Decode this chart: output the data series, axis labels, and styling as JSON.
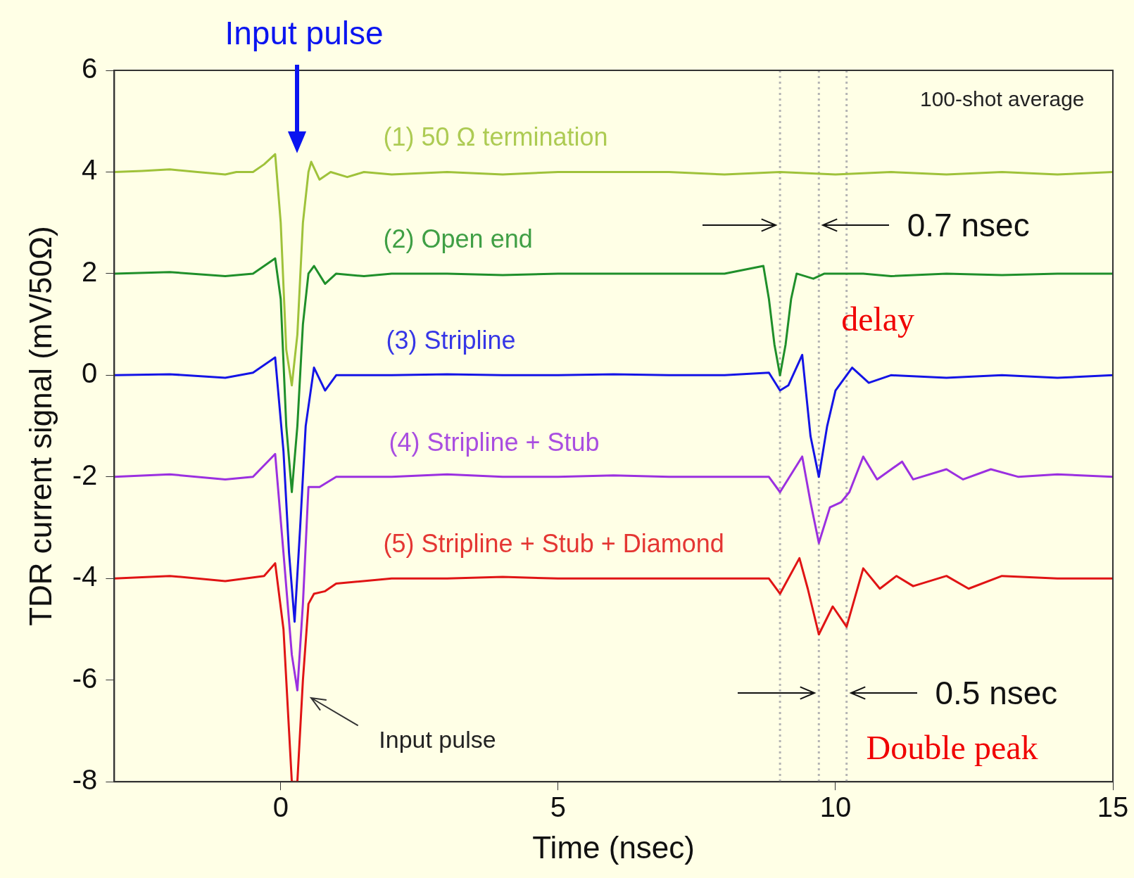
{
  "chart_data": {
    "type": "line",
    "xlabel": "Time (nsec)",
    "ylabel": "TDR current signal (mV/50Ω)",
    "xlim": [
      -3,
      15
    ],
    "xticks": [
      0,
      5,
      10,
      15
    ],
    "ylim": [
      -8,
      6
    ],
    "yticks": [
      -8,
      -6,
      -4,
      -2,
      0,
      2,
      4,
      6
    ],
    "grid": false,
    "legend": false,
    "marker": "none",
    "line_style": "solid",
    "series": [
      {
        "name": "(1) 50 Ω termination",
        "color": "#9fc23a",
        "x": [
          -3,
          -2.5,
          -2,
          -1.5,
          -1,
          -0.8,
          -0.5,
          -0.3,
          -0.1,
          0,
          0.1,
          0.2,
          0.3,
          0.4,
          0.5,
          0.55,
          0.7,
          0.9,
          1.2,
          1.5,
          2,
          3,
          4,
          5,
          6,
          7,
          8,
          9,
          10,
          11,
          12,
          13,
          14,
          15
        ],
        "values": [
          4,
          4.02,
          4.05,
          4,
          3.95,
          4,
          4,
          4.15,
          4.35,
          3,
          0.5,
          -0.2,
          0.8,
          3,
          4,
          4.2,
          3.85,
          4,
          3.9,
          4,
          3.95,
          4,
          3.95,
          4,
          4,
          4,
          3.95,
          4,
          3.95,
          4,
          3.95,
          4,
          3.95,
          4
        ]
      },
      {
        "name": "(2) Open end",
        "color": "#1f8f2a",
        "x": [
          -3,
          -2,
          -1,
          -0.5,
          -0.1,
          0,
          0.1,
          0.2,
          0.3,
          0.4,
          0.5,
          0.6,
          0.8,
          1,
          1.5,
          2,
          3,
          4,
          5,
          6,
          7,
          8,
          8.7,
          8.8,
          8.9,
          9,
          9.1,
          9.2,
          9.3,
          9.6,
          9.8,
          10.5,
          11,
          12,
          13,
          14,
          15
        ],
        "values": [
          2,
          2.03,
          1.95,
          2,
          2.3,
          1.5,
          -1,
          -2.3,
          -1,
          1,
          2,
          2.15,
          1.8,
          2,
          1.95,
          2,
          2,
          1.97,
          2,
          2,
          2,
          2,
          2.15,
          1.5,
          0.6,
          0,
          0.6,
          1.5,
          2,
          1.9,
          2,
          2,
          1.95,
          2,
          1.97,
          2,
          2
        ]
      },
      {
        "name": "(3) Stripline",
        "color": "#1414e6",
        "x": [
          -3,
          -2,
          -1,
          -0.5,
          -0.1,
          0.05,
          0.15,
          0.25,
          0.35,
          0.45,
          0.6,
          0.8,
          1,
          2,
          3,
          4,
          5,
          6,
          7,
          8,
          8.8,
          9,
          9.15,
          9.4,
          9.55,
          9.7,
          9.85,
          10,
          10.3,
          10.6,
          11,
          12,
          13,
          14,
          15
        ],
        "values": [
          0,
          0.02,
          -0.05,
          0.05,
          0.35,
          -1.5,
          -3.5,
          -4.85,
          -3,
          -1,
          0.15,
          -0.3,
          0,
          0,
          0.02,
          0,
          0,
          0.02,
          0,
          0,
          0.05,
          -0.3,
          -0.2,
          0.4,
          -1.2,
          -2,
          -1,
          -0.3,
          0.15,
          -0.15,
          0,
          -0.05,
          0,
          -0.05,
          0
        ]
      },
      {
        "name": "(4) Stripline + Stub",
        "color": "#9b30e0",
        "x": [
          -3,
          -2,
          -1,
          -0.5,
          -0.1,
          0.05,
          0.2,
          0.3,
          0.4,
          0.5,
          0.7,
          1,
          2,
          3,
          4,
          5,
          6,
          7,
          8,
          8.8,
          9,
          9.4,
          9.55,
          9.7,
          9.9,
          10.1,
          10.25,
          10.5,
          10.75,
          11.2,
          11.4,
          12,
          12.3,
          12.8,
          13.3,
          14,
          15
        ],
        "values": [
          -2,
          -1.95,
          -2.05,
          -2,
          -1.55,
          -3.5,
          -5.5,
          -6.2,
          -4.5,
          -2.2,
          -2.2,
          -2,
          -2,
          -1.95,
          -2,
          -2,
          -1.97,
          -2,
          -2,
          -2,
          -2.3,
          -1.6,
          -2.5,
          -3.3,
          -2.6,
          -2.5,
          -2.3,
          -1.6,
          -2.05,
          -1.7,
          -2.05,
          -1.85,
          -2.05,
          -1.85,
          -2,
          -1.95,
          -2
        ]
      },
      {
        "name": "(5) Stripline + Stub + Diamond",
        "color": "#e01414",
        "x": [
          -3,
          -2,
          -1,
          -0.3,
          -0.1,
          0.05,
          0.15,
          0.2,
          0.3,
          0.4,
          0.5,
          0.6,
          0.8,
          1,
          2,
          3,
          4,
          5,
          6,
          7,
          8,
          8.8,
          9,
          9.35,
          9.5,
          9.7,
          9.95,
          10.2,
          10.5,
          10.8,
          11.1,
          11.4,
          12,
          12.4,
          13,
          14,
          15
        ],
        "values": [
          -4,
          -3.95,
          -4.05,
          -3.95,
          -3.7,
          -5,
          -7,
          -8,
          -8,
          -6,
          -4.5,
          -4.3,
          -4.25,
          -4.1,
          -4,
          -4,
          -3.97,
          -4,
          -4,
          -4,
          -4,
          -4,
          -4.3,
          -3.6,
          -4.2,
          -5.1,
          -4.55,
          -4.95,
          -3.8,
          -4.2,
          -3.95,
          -4.15,
          -3.95,
          -4.2,
          -3.95,
          -4,
          -4
        ]
      }
    ],
    "ref_lines": [
      {
        "axis": "x",
        "value": 9,
        "color": "#b4b4b4",
        "line_style": "dotted"
      },
      {
        "axis": "x",
        "value": 9.7,
        "color": "#b4b4b4",
        "line_style": "dotted"
      },
      {
        "axis": "x",
        "value": 10.2,
        "color": "#b4b4b4",
        "line_style": "dotted"
      }
    ],
    "annotations": [
      "Input pulse",
      "100-shot average",
      "0.7 nsec",
      "delay",
      "0.5 nsec",
      "Double peak",
      "Input pulse"
    ]
  }
}
